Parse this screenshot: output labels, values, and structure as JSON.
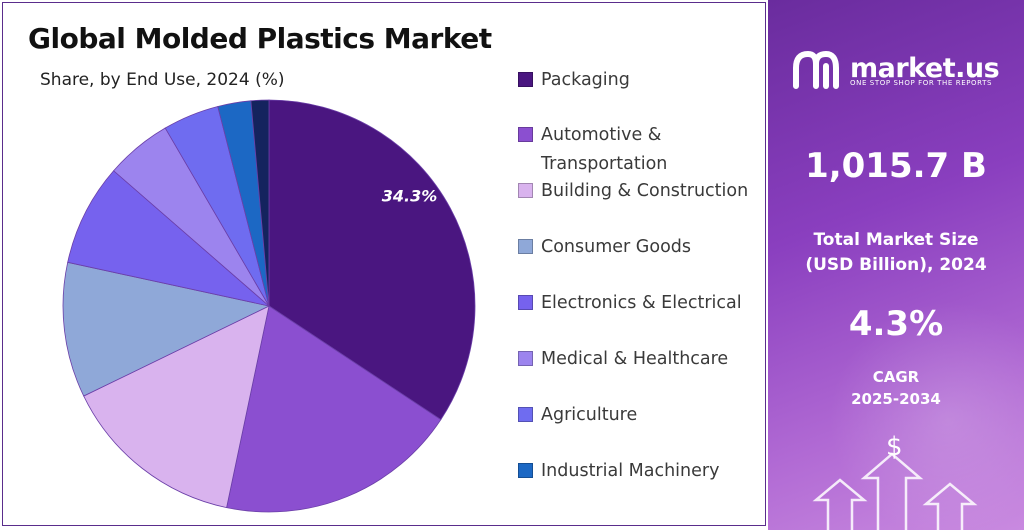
{
  "chart_data": {
    "type": "pie",
    "title": "Global Molded Plastics Market",
    "subtitle": "Share, by End Use, 2024 (%)",
    "slices": [
      {
        "label": "Packaging",
        "value": 34.3,
        "color": "#4a1680",
        "show_label": true
      },
      {
        "label": "Automotive & Transportation",
        "value": 19.0,
        "color": "#8b4fd0",
        "show_label": false
      },
      {
        "label": "Building & Construction",
        "value": 14.5,
        "color": "#d9b3ee",
        "show_label": false
      },
      {
        "label": "Consumer Goods",
        "value": 10.6,
        "color": "#8fa8d8",
        "show_label": false
      },
      {
        "label": "Electronics & Electrical",
        "value": 8.0,
        "color": "#7662ee",
        "show_label": false
      },
      {
        "label": "Medical & Healthcare",
        "value": 5.2,
        "color": "#9c84ee",
        "show_label": false
      },
      {
        "label": "Agriculture",
        "value": 4.4,
        "color": "#6f6cf0",
        "show_label": false
      },
      {
        "label": "Industrial Machinery",
        "value": 2.6,
        "color": "#1c68c4",
        "show_label": false
      },
      {
        "label": "",
        "value": 1.4,
        "color": "#14235e",
        "show_label": false
      }
    ],
    "data_label": "34.3%",
    "legend_position": "right"
  },
  "legend_labels": {
    "l0": "Packaging",
    "l1": "Automotive & Transportation",
    "l2": "Building & Construction",
    "l3": "Consumer Goods",
    "l4": "Electronics & Electrical",
    "l5": "Medical & Healthcare",
    "l6": "Agriculture",
    "l7": "Industrial Machinery"
  },
  "brand": {
    "name": "market.us",
    "tagline": "ONE STOP SHOP FOR THE REPORTS",
    "logo_icon": "market-us-logo-icon"
  },
  "stats": {
    "market_size_value": "1,015.7 B",
    "market_size_label_line1": "Total Market Size",
    "market_size_label_line2": "(USD Billion), 2024",
    "cagr_value": "4.3%",
    "cagr_label_line1": "CAGR",
    "cagr_label_line2": "2025-2034",
    "currency_symbol": "$"
  },
  "colors": {
    "panel_primary": "#7a34b0",
    "panel_light": "#c98ae0",
    "title_text": "#111111"
  }
}
